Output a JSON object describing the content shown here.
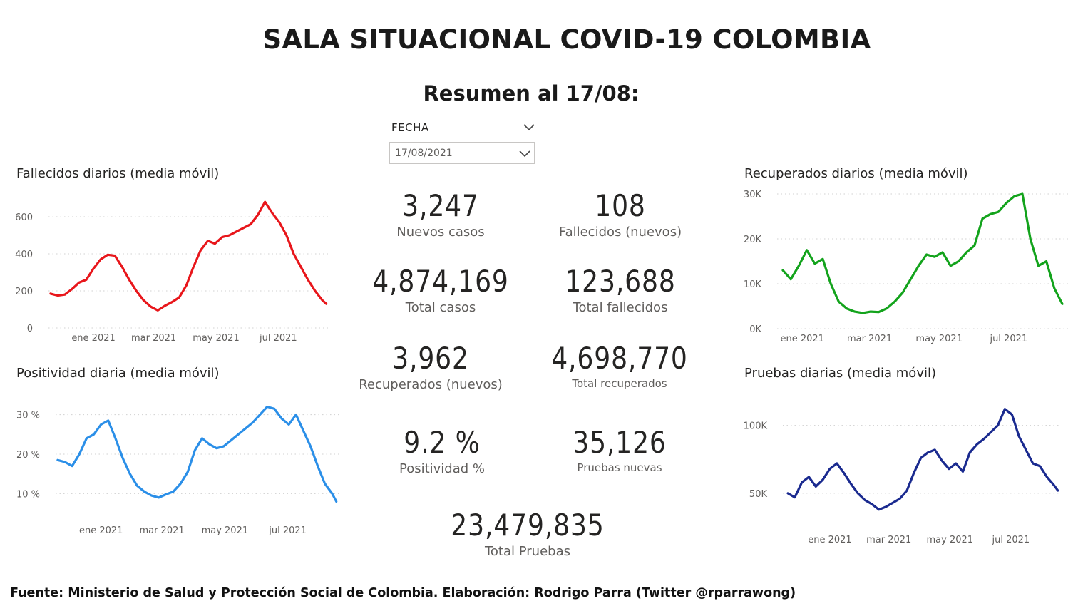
{
  "header": {
    "title": "SALA SITUACIONAL COVID-19 COLOMBIA",
    "summary": "Resumen al 17/08:"
  },
  "slicer": {
    "label": "FECHA",
    "value": "17/08/2021"
  },
  "kpis": {
    "new_cases": {
      "value": "3,247",
      "label": "Nuevos casos"
    },
    "new_deaths": {
      "value": "108",
      "label": "Fallecidos (nuevos)"
    },
    "total_cases": {
      "value": "4,874,169",
      "label": "Total casos"
    },
    "total_deaths": {
      "value": "123,688",
      "label": "Total fallecidos"
    },
    "new_recovered": {
      "value": "3,962",
      "label": "Recuperados (nuevos)"
    },
    "total_recovered": {
      "value": "4,698,770",
      "label": "Total recuperados"
    },
    "positivity": {
      "value": "9.2 %",
      "label": "Positividad %"
    },
    "new_tests": {
      "value": "35,126",
      "label": "Pruebas nuevas"
    },
    "total_tests": {
      "value": "23,479,835",
      "label": "Total Pruebas"
    }
  },
  "footer": {
    "text": "Fuente: Ministerio de Salud y Protección Social de Colombia. Elaboración: Rodrigo Parra (Twitter @rparrawong)"
  },
  "colors": {
    "deaths": "#e8161b",
    "positivity": "#2b8fe8",
    "recovered": "#13a31c",
    "tests": "#1a2a8f",
    "grid": "#d0d0d0",
    "axis_text": "#605e5c"
  },
  "chart_data": [
    {
      "id": "deaths",
      "type": "line",
      "title": "Fallecidos diarios (media móvil)",
      "x_ticks": [
        "ene 2021",
        "mar 2021",
        "may 2021",
        "jul 2021"
      ],
      "x": [
        "2020-11-20",
        "2020-11-27",
        "2020-12-04",
        "2020-12-11",
        "2020-12-18",
        "2020-12-25",
        "2021-01-01",
        "2021-01-08",
        "2021-01-15",
        "2021-01-22",
        "2021-01-29",
        "2021-02-05",
        "2021-02-12",
        "2021-02-19",
        "2021-02-26",
        "2021-03-05",
        "2021-03-12",
        "2021-03-19",
        "2021-03-26",
        "2021-04-02",
        "2021-04-09",
        "2021-04-16",
        "2021-04-23",
        "2021-04-30",
        "2021-05-07",
        "2021-05-14",
        "2021-05-21",
        "2021-05-28",
        "2021-06-04",
        "2021-06-11",
        "2021-06-18",
        "2021-06-25",
        "2021-07-02",
        "2021-07-09",
        "2021-07-16",
        "2021-07-23",
        "2021-07-30",
        "2021-08-06",
        "2021-08-13",
        "2021-08-17"
      ],
      "y": [
        185,
        175,
        180,
        210,
        245,
        260,
        320,
        370,
        395,
        390,
        330,
        260,
        200,
        150,
        115,
        95,
        120,
        140,
        165,
        230,
        330,
        420,
        470,
        455,
        490,
        500,
        520,
        540,
        560,
        610,
        680,
        620,
        570,
        500,
        400,
        330,
        260,
        200,
        150,
        130
      ],
      "y_ticks": [
        0,
        200,
        400,
        600
      ],
      "y_tick_labels": [
        "0",
        "200",
        "400",
        "600"
      ],
      "ylim": [
        0,
        700
      ]
    },
    {
      "id": "positivity",
      "type": "line",
      "title": "Positividad diaria (media móvil)",
      "x_ticks": [
        "ene 2021",
        "mar 2021",
        "may 2021",
        "jul 2021"
      ],
      "x": [
        "2020-11-20",
        "2020-11-27",
        "2020-12-04",
        "2020-12-11",
        "2020-12-18",
        "2020-12-25",
        "2021-01-01",
        "2021-01-08",
        "2021-01-15",
        "2021-01-22",
        "2021-01-29",
        "2021-02-05",
        "2021-02-12",
        "2021-02-19",
        "2021-02-26",
        "2021-03-05",
        "2021-03-12",
        "2021-03-19",
        "2021-03-26",
        "2021-04-02",
        "2021-04-09",
        "2021-04-16",
        "2021-04-23",
        "2021-04-30",
        "2021-05-07",
        "2021-05-14",
        "2021-05-21",
        "2021-05-28",
        "2021-06-04",
        "2021-06-11",
        "2021-06-18",
        "2021-06-25",
        "2021-07-02",
        "2021-07-09",
        "2021-07-16",
        "2021-07-23",
        "2021-07-30",
        "2021-08-06",
        "2021-08-13",
        "2021-08-17"
      ],
      "y": [
        18.5,
        18.0,
        17.0,
        20.0,
        24.0,
        25.0,
        27.5,
        28.5,
        24.0,
        19.0,
        15.0,
        12.0,
        10.5,
        9.5,
        9.0,
        9.8,
        10.5,
        12.5,
        15.5,
        21.0,
        24.0,
        22.5,
        21.5,
        22.0,
        23.5,
        25.0,
        26.5,
        28.0,
        30.0,
        32.0,
        31.5,
        29.0,
        27.5,
        30.0,
        26.0,
        22.0,
        17.0,
        12.5,
        10.0,
        8.0
      ],
      "y_ticks": [
        10,
        20,
        30
      ],
      "y_tick_labels": [
        "10 %",
        "20 %",
        "30 %"
      ],
      "ylim": [
        5,
        33
      ]
    },
    {
      "id": "recovered",
      "type": "line",
      "title": "Recuperados diarios (media móvil)",
      "x_ticks": [
        "ene 2021",
        "mar 2021",
        "may 2021",
        "jul 2021"
      ],
      "x": [
        "2020-12-15",
        "2020-12-22",
        "2020-12-29",
        "2021-01-05",
        "2021-01-12",
        "2021-01-19",
        "2021-01-26",
        "2021-02-02",
        "2021-02-09",
        "2021-02-16",
        "2021-02-23",
        "2021-03-02",
        "2021-03-09",
        "2021-03-16",
        "2021-03-23",
        "2021-03-30",
        "2021-04-06",
        "2021-04-13",
        "2021-04-20",
        "2021-04-27",
        "2021-05-04",
        "2021-05-11",
        "2021-05-18",
        "2021-05-25",
        "2021-06-01",
        "2021-06-08",
        "2021-06-15",
        "2021-06-22",
        "2021-06-29",
        "2021-07-06",
        "2021-07-13",
        "2021-07-20",
        "2021-07-27",
        "2021-08-03",
        "2021-08-10",
        "2021-08-17"
      ],
      "y": [
        13000,
        11000,
        14000,
        17500,
        14500,
        15500,
        10000,
        6000,
        4500,
        3800,
        3500,
        3800,
        3700,
        4500,
        6000,
        8000,
        11000,
        14000,
        16500,
        16000,
        17000,
        14000,
        15000,
        17000,
        18500,
        24500,
        25500,
        26000,
        28000,
        29500,
        30000,
        20000,
        14000,
        15000,
        9000,
        5500
      ],
      "y_ticks": [
        0,
        10000,
        20000,
        30000
      ],
      "y_tick_labels": [
        "0K",
        "10K",
        "20K",
        "30K"
      ],
      "ylim": [
        0,
        30000
      ]
    },
    {
      "id": "tests",
      "type": "line",
      "title": "Pruebas diarias (media móvil)",
      "x_ticks": [
        "ene 2021",
        "mar 2021",
        "may 2021",
        "jul 2021"
      ],
      "x": [
        "2020-11-20",
        "2020-11-27",
        "2020-12-04",
        "2020-12-11",
        "2020-12-18",
        "2020-12-25",
        "2021-01-01",
        "2021-01-08",
        "2021-01-15",
        "2021-01-22",
        "2021-01-29",
        "2021-02-05",
        "2021-02-12",
        "2021-02-19",
        "2021-02-26",
        "2021-03-05",
        "2021-03-12",
        "2021-03-19",
        "2021-03-26",
        "2021-04-02",
        "2021-04-09",
        "2021-04-16",
        "2021-04-23",
        "2021-04-30",
        "2021-05-07",
        "2021-05-14",
        "2021-05-21",
        "2021-05-28",
        "2021-06-04",
        "2021-06-11",
        "2021-06-18",
        "2021-06-25",
        "2021-07-02",
        "2021-07-09",
        "2021-07-16",
        "2021-07-23",
        "2021-07-30",
        "2021-08-06",
        "2021-08-13",
        "2021-08-17"
      ],
      "y": [
        50000,
        47000,
        58000,
        62000,
        55000,
        60000,
        68000,
        72000,
        65000,
        57000,
        50000,
        45000,
        42000,
        38000,
        40000,
        43000,
        46000,
        52000,
        65000,
        76000,
        80000,
        82000,
        74000,
        68000,
        72000,
        66000,
        80000,
        86000,
        90000,
        95000,
        100000,
        112000,
        108000,
        92000,
        82000,
        72000,
        70000,
        62000,
        56000,
        52000
      ],
      "y_ticks": [
        50000,
        100000
      ],
      "y_tick_labels": [
        "50K",
        "100K"
      ],
      "ylim": [
        30000,
        115000
      ]
    }
  ]
}
